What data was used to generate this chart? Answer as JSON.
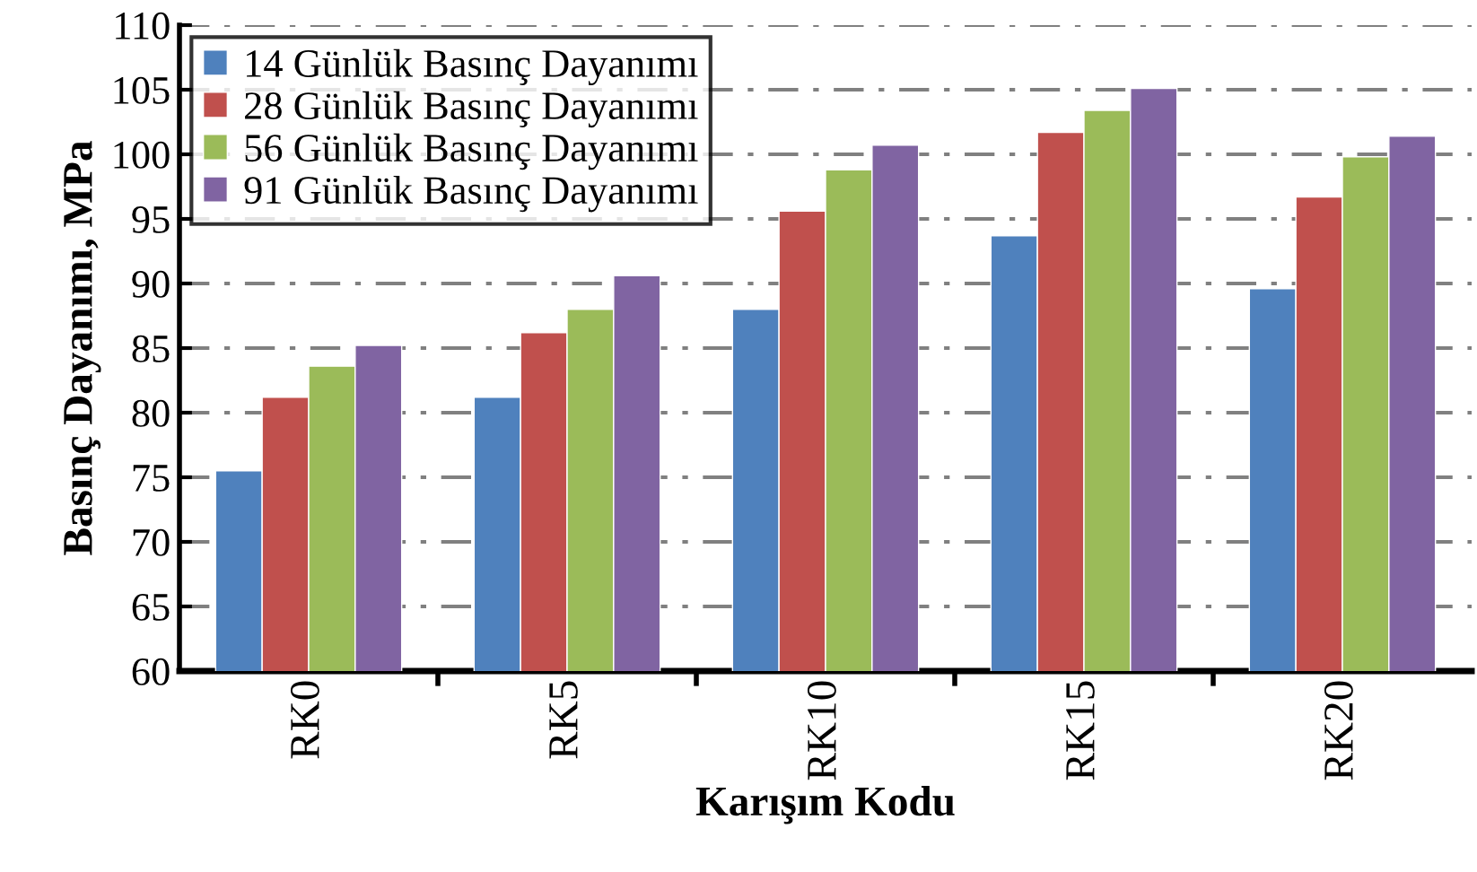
{
  "chart_data": {
    "type": "bar",
    "xlabel": "Karışım Kodu",
    "ylabel": "Basınç Dayanımı, MPa",
    "categories": [
      "RK0",
      "RK5",
      "RK10",
      "RK15",
      "RK20"
    ],
    "series": [
      {
        "name": "14 Günlük Basınç Dayanımı",
        "color": "#4f81bd",
        "values": [
          75.5,
          81.2,
          88.0,
          93.7,
          89.6
        ]
      },
      {
        "name": "28 Günlük Basınç Dayanımı",
        "color": "#c0504d",
        "values": [
          81.2,
          86.2,
          95.6,
          101.7,
          96.7
        ]
      },
      {
        "name": "56 Günlük Basınç Dayanımı",
        "color": "#9bbb59",
        "values": [
          83.6,
          88.0,
          98.8,
          103.4,
          99.8
        ]
      },
      {
        "name": "91 Günlük Basınç Dayanımı",
        "color": "#8064a2",
        "values": [
          85.2,
          90.6,
          100.7,
          105.1,
          101.4
        ]
      }
    ],
    "ylim": [
      60,
      110
    ],
    "yticks": [
      60,
      65,
      70,
      75,
      80,
      85,
      90,
      95,
      100,
      105,
      110
    ],
    "grid": "y",
    "legend": "top left"
  }
}
